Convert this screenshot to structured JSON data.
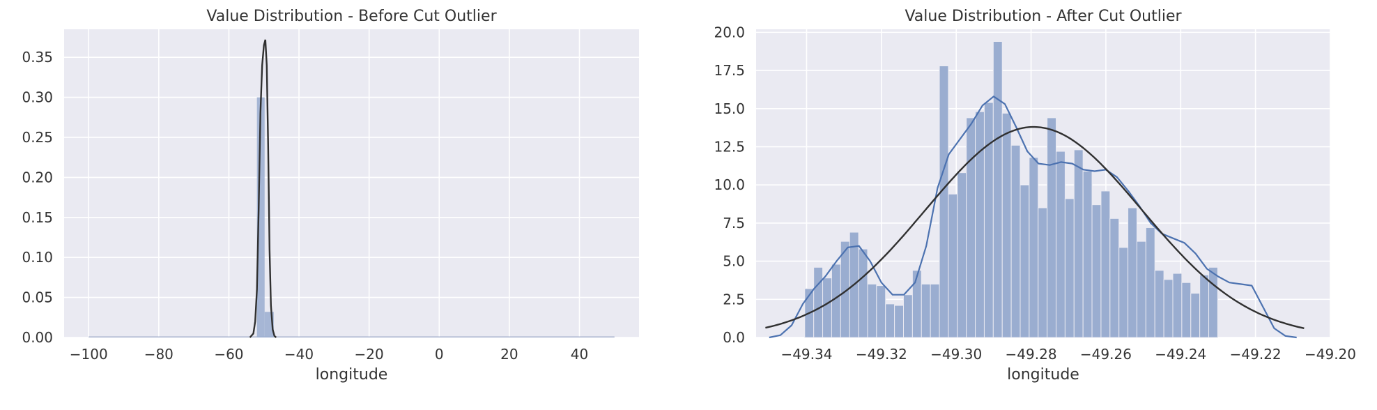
{
  "chart_data": [
    {
      "type": "histogram",
      "title": "Value Distribution - Before Cut Outlier",
      "xlabel": "longitude",
      "ylabel": "",
      "xlim": [
        -107,
        57
      ],
      "ylim": [
        0,
        0.385
      ],
      "xticks": [
        -100,
        -80,
        -60,
        -40,
        -20,
        0,
        20,
        40
      ],
      "xtick_labels": [
        "−100",
        "−80",
        "−60",
        "−40",
        "−20",
        "0",
        "20",
        "40"
      ],
      "yticks": [
        0.0,
        0.05,
        0.1,
        0.15,
        0.2,
        0.25,
        0.3,
        0.35
      ],
      "ytick_labels": [
        "0.00",
        "0.05",
        "0.10",
        "0.15",
        "0.20",
        "0.25",
        "0.30",
        "0.35"
      ],
      "grid": true,
      "bars": [
        {
          "x0": -52.0,
          "x1": -49.8,
          "value": 0.3
        },
        {
          "x0": -49.8,
          "x1": -47.2,
          "value": 0.032
        }
      ],
      "baseline_range": [
        -100,
        50
      ],
      "fit_curve": {
        "x": [
          -54,
          -53,
          -52.5,
          -52,
          -51.5,
          -51,
          -50.5,
          -50,
          -49.6,
          -49.2,
          -48.8,
          -48.4,
          -48,
          -47.5,
          -47,
          -46.5
        ],
        "y": [
          0.0,
          0.005,
          0.02,
          0.06,
          0.16,
          0.28,
          0.34,
          0.365,
          0.372,
          0.34,
          0.24,
          0.11,
          0.04,
          0.01,
          0.002,
          0.0
        ]
      },
      "colors": {
        "bar": "#9aadd0",
        "fit": "#303030",
        "plot_bg": "#eaeaf2"
      }
    },
    {
      "type": "histogram",
      "title": "Value Distribution - After Cut Outlier",
      "xlabel": "longitude",
      "ylabel": "",
      "xlim": [
        -49.3535,
        -49.2
      ],
      "ylim": [
        0,
        20.2
      ],
      "xticks": [
        -49.34,
        -49.32,
        -49.3,
        -49.28,
        -49.26,
        -49.24,
        -49.22,
        -49.2
      ],
      "xtick_labels": [
        "−49.34",
        "−49.32",
        "−49.30",
        "−49.28",
        "−49.26",
        "−49.24",
        "−49.22",
        "−49.20"
      ],
      "yticks": [
        0.0,
        2.5,
        5.0,
        7.5,
        10.0,
        12.5,
        15.0,
        17.5,
        20.0
      ],
      "ytick_labels": [
        "0.0",
        "2.5",
        "5.0",
        "7.5",
        "10.0",
        "12.5",
        "15.0",
        "17.5",
        "20.0"
      ],
      "grid": true,
      "bin_start": -49.3405,
      "bin_width": 0.0024,
      "values": [
        3.2,
        4.6,
        3.9,
        4.8,
        6.3,
        6.9,
        5.8,
        3.5,
        3.4,
        2.2,
        2.1,
        2.8,
        4.4,
        3.5,
        3.5,
        17.8,
        9.4,
        10.8,
        14.4,
        14.8,
        15.4,
        19.4,
        14.7,
        12.6,
        10.0,
        11.8,
        8.5,
        14.4,
        12.2,
        9.1,
        12.3,
        10.9,
        8.7,
        9.6,
        7.8,
        5.9,
        8.5,
        6.3,
        7.2,
        4.4,
        3.8,
        4.2,
        3.6,
        2.9,
        4.1,
        4.6
      ],
      "kde": {
        "x": [
          -49.35,
          -49.347,
          -49.344,
          -49.341,
          -49.338,
          -49.335,
          -49.332,
          -49.329,
          -49.326,
          -49.323,
          -49.32,
          -49.317,
          -49.314,
          -49.311,
          -49.308,
          -49.305,
          -49.302,
          -49.299,
          -49.296,
          -49.293,
          -49.29,
          -49.287,
          -49.284,
          -49.281,
          -49.278,
          -49.275,
          -49.272,
          -49.269,
          -49.266,
          -49.263,
          -49.26,
          -49.257,
          -49.254,
          -49.251,
          -49.248,
          -49.245,
          -49.242,
          -49.239,
          -49.236,
          -49.233,
          -49.23,
          -49.227,
          -49.224,
          -49.221,
          -49.218,
          -49.215,
          -49.212,
          -49.209
        ],
        "y": [
          0.0,
          0.15,
          0.8,
          2.2,
          3.2,
          4.0,
          5.0,
          5.9,
          6.0,
          5.0,
          3.6,
          2.8,
          2.8,
          3.6,
          6.0,
          9.8,
          12.0,
          13.0,
          14.0,
          15.2,
          15.8,
          15.3,
          13.8,
          12.2,
          11.4,
          11.3,
          11.5,
          11.4,
          11.0,
          10.9,
          11.0,
          10.5,
          9.6,
          8.6,
          7.5,
          6.8,
          6.5,
          6.2,
          5.5,
          4.5,
          4.0,
          3.6,
          3.5,
          3.4,
          2.0,
          0.6,
          0.1,
          0.0
        ]
      },
      "normal_fit": {
        "mean": -49.2793,
        "sd": 0.0289,
        "peak": 13.8
      },
      "colors": {
        "bar": "#9aadd0",
        "kde": "#4c72b0",
        "fit": "#303030",
        "plot_bg": "#eaeaf2"
      }
    }
  ]
}
